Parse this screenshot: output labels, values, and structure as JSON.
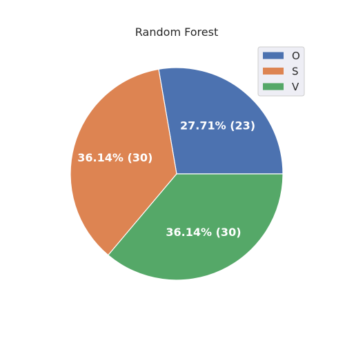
{
  "chart_data": {
    "type": "pie",
    "title": "Random Forest",
    "categories": [
      "O",
      "S",
      "V"
    ],
    "values": [
      23,
      30,
      30
    ],
    "labels": [
      "27.71%  (23)",
      "36.14%  (30)",
      "36.14%  (30)"
    ],
    "colors": [
      "#4c72b0",
      "#dd8452",
      "#55a868"
    ],
    "legend": {
      "entries": [
        "O",
        "S",
        "V"
      ],
      "placement": "top-right"
    },
    "start_angle_deg": 0,
    "direction": "counterclockwise"
  }
}
